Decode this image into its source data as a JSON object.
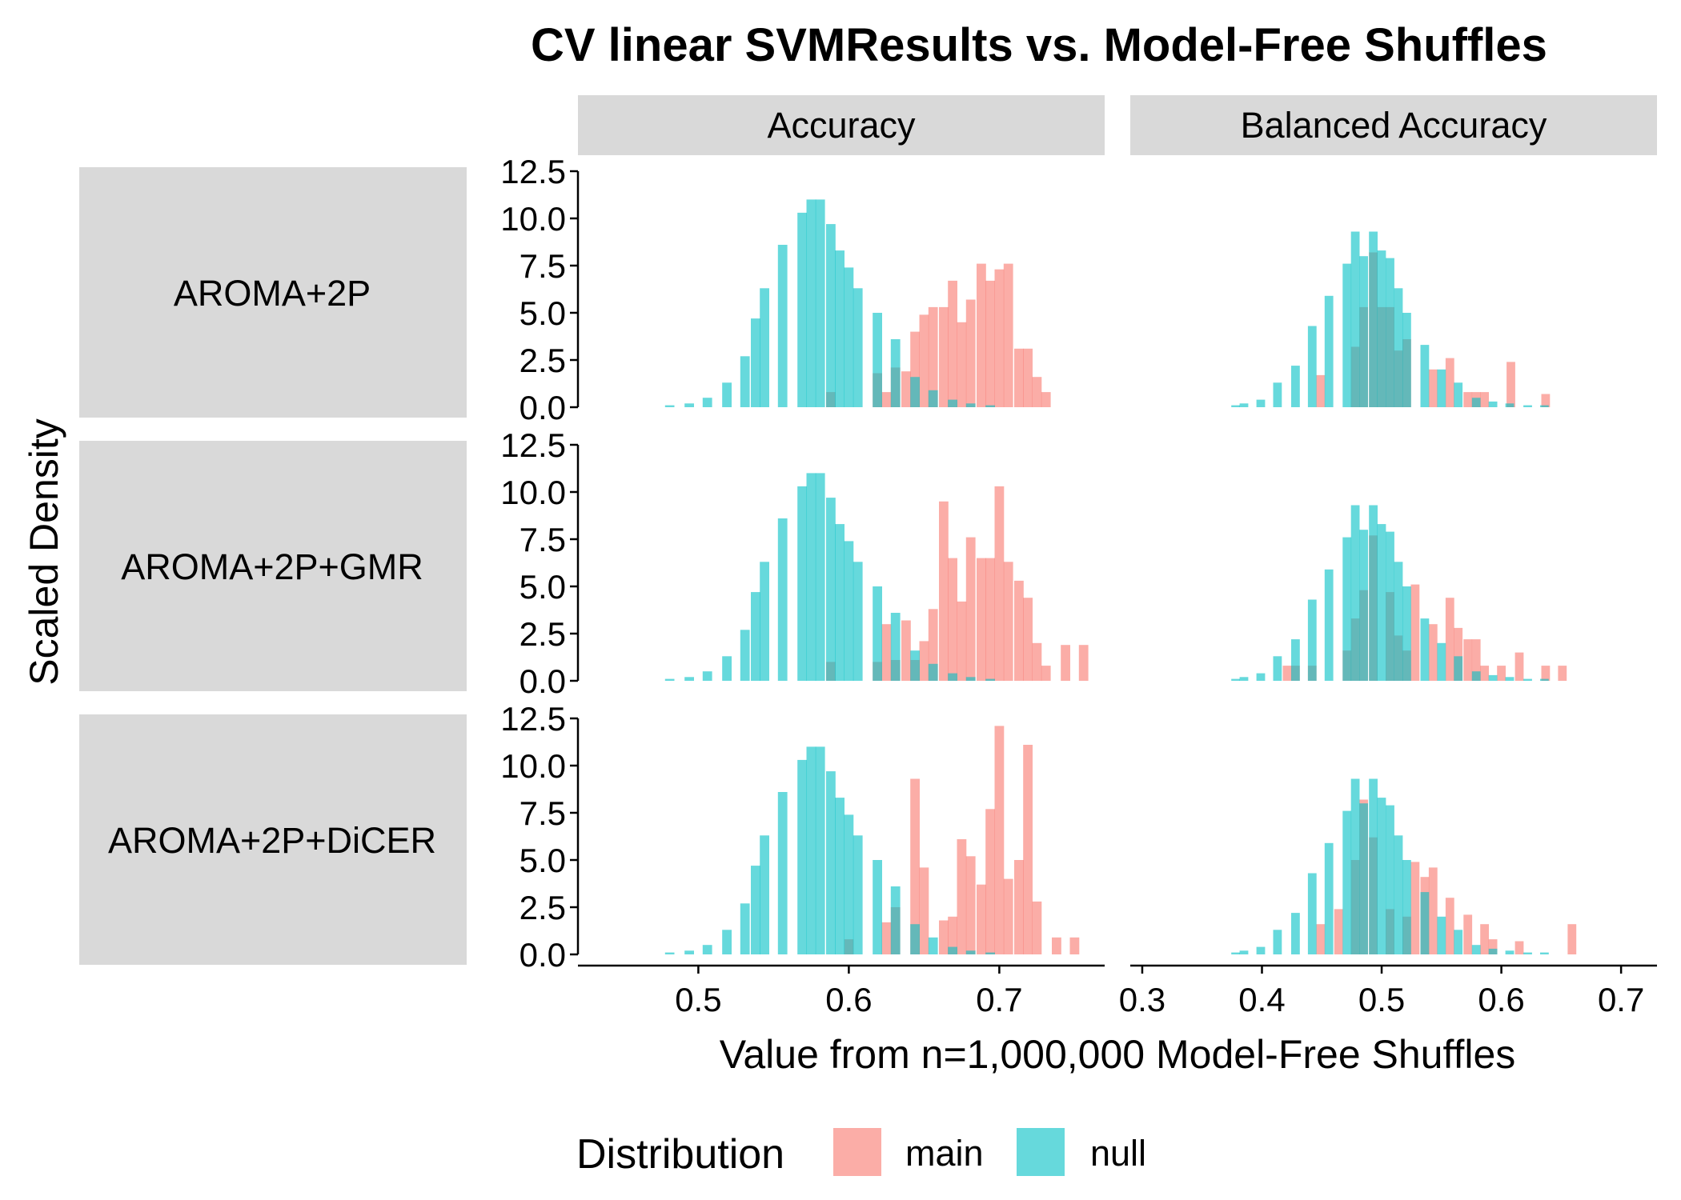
{
  "chart_data": {
    "type": "bar",
    "title": "CV linear SVMResults vs. Model-Free Shuffles",
    "xlabel": "Value from n=1,000,000 Model-Free Shuffles",
    "ylabel": "Scaled Density",
    "legend": {
      "title": "Distribution",
      "position": "bottom",
      "entries": [
        {
          "name": "main",
          "color": "#F8766D"
        },
        {
          "name": "null",
          "color": "#00BFC4"
        }
      ]
    },
    "columns": [
      "Accuracy",
      "Balanced Accuracy"
    ],
    "rows": [
      "AROMA+2P",
      "AROMA+2P+GMR",
      "AROMA+2P+DiCER"
    ],
    "ylim": [
      0,
      12.5
    ],
    "yticks": [
      "0.0",
      "2.5",
      "5.0",
      "7.5",
      "10.0",
      "12.5"
    ],
    "xlim": [
      [
        0.42,
        0.77
      ],
      [
        0.29,
        0.73
      ]
    ],
    "xticks": [
      [
        "0.5",
        "0.6",
        "0.7"
      ],
      [
        "0.3",
        "0.4",
        "0.5",
        "0.6",
        "0.7"
      ]
    ],
    "bin_width": [
      0.00625,
      0.00725
    ],
    "null_accuracy": {
      "x": [
        0.481,
        0.494,
        0.506,
        0.519,
        0.531,
        0.538,
        0.544,
        0.556,
        0.569,
        0.575,
        0.581,
        0.588,
        0.594,
        0.6,
        0.606,
        0.619,
        0.631,
        0.644,
        0.656,
        0.669,
        0.681,
        0.694
      ],
      "values": [
        0.1,
        0.2,
        0.5,
        1.3,
        2.7,
        4.7,
        6.3,
        8.6,
        10.3,
        11.0,
        11.0,
        9.7,
        8.3,
        7.4,
        6.3,
        5.0,
        3.6,
        1.6,
        0.9,
        0.4,
        0.2,
        0.1
      ]
    },
    "null_balanced_accuracy": {
      "x": [
        0.378,
        0.385,
        0.399,
        0.413,
        0.428,
        0.442,
        0.456,
        0.471,
        0.478,
        0.485,
        0.493,
        0.5,
        0.507,
        0.514,
        0.521,
        0.536,
        0.55,
        0.564,
        0.579,
        0.593,
        0.607,
        0.622,
        0.636
      ],
      "values": [
        0.1,
        0.2,
        0.4,
        1.3,
        2.2,
        4.3,
        5.9,
        7.6,
        9.3,
        8.0,
        9.3,
        8.3,
        7.9,
        6.3,
        5.0,
        3.3,
        2.0,
        1.3,
        0.5,
        0.3,
        0.2,
        0.1,
        0.1
      ]
    },
    "main_accuracy": [
      {
        "x": [
          0.588,
          0.619,
          0.625,
          0.631,
          0.638,
          0.644,
          0.65,
          0.656,
          0.663,
          0.669,
          0.675,
          0.681,
          0.688,
          0.694,
          0.7,
          0.706,
          0.713,
          0.719,
          0.725,
          0.731
        ],
        "values": [
          0.8,
          1.8,
          0.8,
          2.1,
          1.9,
          4.0,
          4.9,
          5.3,
          5.3,
          6.7,
          4.5,
          5.7,
          7.6,
          6.7,
          7.3,
          7.6,
          3.1,
          3.1,
          1.6,
          0.8
        ]
      },
      {
        "x": [
          0.588,
          0.619,
          0.625,
          0.631,
          0.638,
          0.644,
          0.65,
          0.656,
          0.663,
          0.669,
          0.675,
          0.681,
          0.688,
          0.694,
          0.7,
          0.706,
          0.713,
          0.719,
          0.725,
          0.731,
          0.744,
          0.756
        ],
        "values": [
          1.0,
          1.0,
          3.0,
          1.1,
          3.2,
          1.1,
          2.1,
          3.8,
          9.5,
          6.5,
          4.2,
          7.6,
          6.5,
          6.5,
          10.3,
          6.3,
          5.3,
          4.4,
          2.0,
          0.8,
          1.9,
          1.9
        ]
      },
      {
        "x": [
          0.6,
          0.625,
          0.631,
          0.644,
          0.65,
          0.663,
          0.669,
          0.675,
          0.681,
          0.688,
          0.694,
          0.7,
          0.706,
          0.713,
          0.719,
          0.725,
          0.738,
          0.75
        ],
        "values": [
          0.8,
          1.7,
          2.5,
          9.3,
          4.6,
          1.8,
          2.0,
          6.1,
          5.2,
          3.7,
          7.7,
          12.1,
          4.0,
          5.0,
          11.1,
          2.8,
          0.9,
          0.9
        ]
      }
    ],
    "main_balanced_accuracy": [
      {
        "x": [
          0.449,
          0.478,
          0.485,
          0.493,
          0.5,
          0.507,
          0.514,
          0.521,
          0.543,
          0.557,
          0.572,
          0.579,
          0.586,
          0.608,
          0.637
        ],
        "values": [
          1.7,
          3.2,
          5.3,
          8.2,
          5.3,
          5.3,
          3.0,
          3.6,
          2.0,
          2.6,
          0.8,
          0.8,
          0.8,
          2.4,
          0.7
        ]
      },
      {
        "x": [
          0.421,
          0.428,
          0.442,
          0.471,
          0.478,
          0.485,
          0.493,
          0.507,
          0.514,
          0.521,
          0.528,
          0.543,
          0.557,
          0.564,
          0.572,
          0.579,
          0.586,
          0.6,
          0.615,
          0.637,
          0.651
        ],
        "values": [
          0.8,
          0.8,
          0.8,
          1.6,
          3.3,
          4.8,
          7.7,
          4.7,
          2.4,
          1.6,
          5.1,
          3.0,
          4.4,
          2.8,
          2.2,
          2.2,
          0.8,
          0.8,
          1.5,
          0.8,
          0.8
        ]
      },
      {
        "x": [
          0.449,
          0.464,
          0.478,
          0.485,
          0.493,
          0.507,
          0.521,
          0.528,
          0.536,
          0.543,
          0.557,
          0.572,
          0.586,
          0.593,
          0.615,
          0.659
        ],
        "values": [
          1.6,
          2.4,
          5.0,
          8.2,
          6.2,
          2.4,
          2.0,
          4.9,
          4.1,
          4.6,
          3.0,
          2.1,
          1.6,
          0.8,
          0.7,
          1.6
        ]
      }
    ]
  }
}
